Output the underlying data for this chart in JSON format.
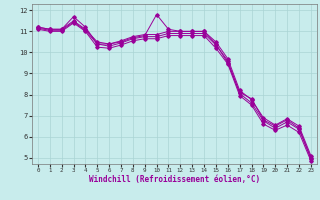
{
  "xlabel": "Windchill (Refroidissement éolien,°C)",
  "background_color": "#c8ecec",
  "grid_color": "#aad4d4",
  "line_color": "#990099",
  "xlim": [
    -0.5,
    23.5
  ],
  "ylim": [
    4.7,
    12.3
  ],
  "xticks": [
    0,
    1,
    2,
    3,
    4,
    5,
    6,
    7,
    8,
    9,
    10,
    11,
    12,
    13,
    14,
    15,
    16,
    17,
    18,
    19,
    20,
    21,
    22,
    23
  ],
  "yticks": [
    5,
    6,
    7,
    8,
    9,
    10,
    11,
    12
  ],
  "series": [
    [
      11.2,
      11.1,
      11.1,
      11.7,
      11.2,
      10.4,
      10.4,
      10.5,
      10.7,
      10.8,
      11.8,
      11.1,
      11.0,
      11.0,
      11.0,
      10.4,
      9.5,
      8.1,
      7.8,
      6.8,
      6.5,
      6.8,
      6.4,
      5.0
    ],
    [
      11.2,
      11.1,
      11.1,
      11.5,
      11.1,
      10.5,
      10.4,
      10.55,
      10.75,
      10.85,
      10.85,
      11.0,
      11.0,
      11.0,
      11.0,
      10.5,
      9.7,
      8.2,
      7.75,
      6.9,
      6.55,
      6.85,
      6.5,
      5.1
    ],
    [
      11.15,
      11.05,
      11.05,
      11.45,
      11.05,
      10.4,
      10.3,
      10.45,
      10.65,
      10.75,
      10.75,
      10.9,
      10.9,
      10.9,
      10.9,
      10.35,
      9.6,
      8.05,
      7.6,
      6.75,
      6.4,
      6.7,
      6.35,
      4.95
    ],
    [
      11.1,
      11.0,
      11.0,
      11.4,
      11.0,
      10.25,
      10.2,
      10.35,
      10.55,
      10.65,
      10.65,
      10.8,
      10.8,
      10.8,
      10.8,
      10.2,
      9.45,
      7.95,
      7.5,
      6.6,
      6.3,
      6.55,
      6.2,
      4.85
    ]
  ]
}
